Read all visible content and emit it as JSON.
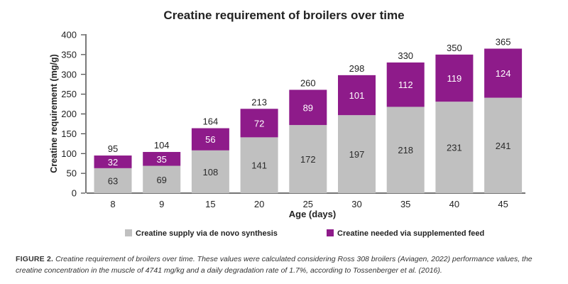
{
  "chart_data": {
    "type": "bar",
    "stacked": true,
    "title": "Creatine requirement of broilers over time",
    "xlabel": "Age (days)",
    "ylabel": "Creatine requirement (mg/g)",
    "ylim": [
      0,
      400
    ],
    "yticks": [
      "0",
      "50",
      "100",
      "150",
      "200",
      "250",
      "300",
      "350",
      "400"
    ],
    "categories": [
      "8",
      "9",
      "15",
      "20",
      "25",
      "30",
      "35",
      "40",
      "45"
    ],
    "series": [
      {
        "name": "Creatine supply via de novo synthesis",
        "color": "#c0c0c0",
        "label_color": "#2b2b2b",
        "values": [
          63,
          69,
          108,
          141,
          172,
          197,
          218,
          231,
          241
        ]
      },
      {
        "name": "Creatine needed via supplemented feed",
        "color": "#8e1b8a",
        "label_color": "#ffffff",
        "values": [
          32,
          35,
          56,
          72,
          89,
          101,
          112,
          119,
          124
        ]
      }
    ],
    "totals": [
      95,
      104,
      164,
      213,
      260,
      298,
      330,
      350,
      365
    ],
    "grid": false,
    "legend_position": "bottom"
  },
  "caption": {
    "label": "FIGURE 2.",
    "text": "Creatine requirement of broilers over time. These values were calculated considering Ross 308 broilers (Aviagen, 2022) performance values, the creatine concentration in the muscle of 4741 mg/kg and a daily degradation rate of 1.7%, according to Tossenberger et al. (2016)."
  }
}
